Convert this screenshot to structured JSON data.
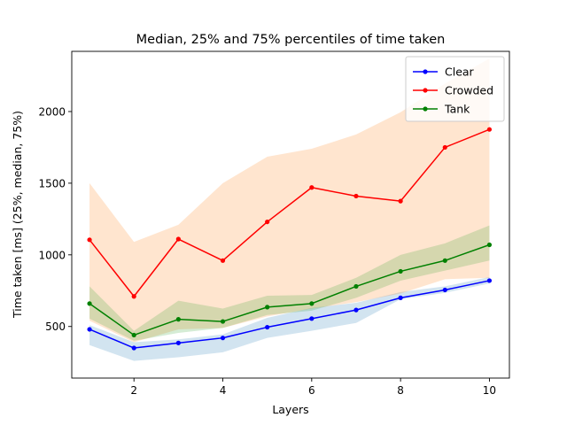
{
  "chart_data": {
    "type": "line",
    "title": "Median, 25% and 75% percentiles of time taken",
    "xlabel": "Layers",
    "ylabel": "Time taken [ms] (25%, median, 75%)",
    "x": [
      1,
      2,
      3,
      4,
      5,
      6,
      7,
      8,
      9,
      10
    ],
    "xlim": [
      0.6,
      10.45
    ],
    "ylim": [
      140,
      2420
    ],
    "xticks": [
      2,
      4,
      6,
      8,
      10
    ],
    "yticks": [
      500,
      1000,
      1500,
      2000
    ],
    "grid": false,
    "legend_position": "top-right",
    "series": [
      {
        "name": "Clear",
        "color": "#0000ff",
        "band_color": "#1f77b4",
        "median": [
          480,
          350,
          385,
          420,
          495,
          555,
          615,
          700,
          755,
          820
        ],
        "p25": [
          370,
          260,
          285,
          320,
          420,
          470,
          525,
          690,
          735,
          800
        ],
        "p75": [
          510,
          390,
          410,
          445,
          560,
          630,
          665,
          740,
          780,
          845
        ]
      },
      {
        "name": "Crowded",
        "color": "#ff0000",
        "band_color": "#ff7f0e",
        "median": [
          1105,
          710,
          1110,
          960,
          1230,
          1470,
          1410,
          1375,
          1750,
          1875
        ],
        "p25": [
          540,
          390,
          480,
          490,
          570,
          625,
          670,
          730,
          830,
          840
        ],
        "p75": [
          1500,
          1090,
          1210,
          1500,
          1685,
          1740,
          1840,
          1995,
          2195,
          2370
        ]
      },
      {
        "name": "Tank",
        "color": "#008000",
        "band_color": "#2ca02c",
        "median": [
          660,
          440,
          550,
          535,
          635,
          660,
          780,
          885,
          960,
          1070
        ],
        "p25": [
          555,
          400,
          455,
          490,
          580,
          610,
          700,
          820,
          890,
          960
        ],
        "p75": [
          780,
          470,
          680,
          625,
          715,
          720,
          840,
          1000,
          1080,
          1205
        ]
      }
    ]
  }
}
